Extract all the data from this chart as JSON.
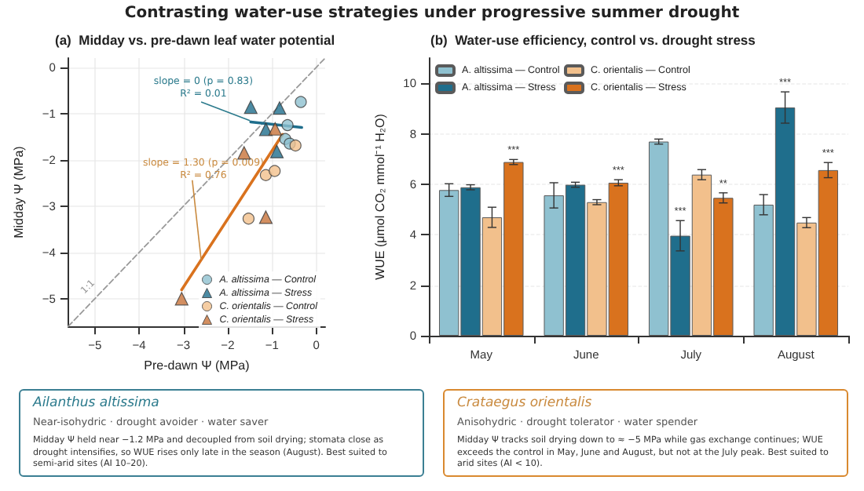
{
  "chart_data": [
    {
      "type": "scatter",
      "title": "(a)  Midday vs. pre-dawn leaf water potential",
      "xlabel": "Pre-dawn Ψ (MPa)",
      "ylabel": "Midday Ψ (MPa)",
      "annotations": [
        "Contrasting water-use strategies under progressive summer drought",
        {
          "text": "slope = 0 (p = 0.83)\nR² = 0.01",
          "x": -1.5,
          "y": -1.15
        },
        {
          "text": "slope = 1.30 (p = 0.009)\nR² = 0.76",
          "x": -2.6,
          "y": -4.16
        },
        "1:1"
      ],
      "xlim": [
        -5.6,
        0.2
      ],
      "ylim": [
        -5.6,
        0.2
      ],
      "xticks": [
        {
          "value": -5,
          "label": "−5"
        },
        {
          "value": -4,
          "label": "−4"
        },
        {
          "value": -3,
          "label": "−3"
        },
        {
          "value": -2,
          "label": "−2"
        },
        {
          "value": -1,
          "label": "−1"
        },
        0
      ],
      "yticks": [
        {
          "value": -5,
          "label": "−5"
        },
        {
          "value": -4,
          "label": "−4"
        },
        {
          "value": -3,
          "label": "−3"
        },
        {
          "value": -2,
          "label": "−2"
        },
        {
          "value": -1,
          "label": "−1"
        },
        0
      ],
      "grid": true,
      "legend": "bottom right",
      "series": [
        {
          "type": "line",
          "color": "#9a9a9a",
          "line_style": "dashed",
          "marker": "none",
          "x": [
            -5.6,
            0.2
          ],
          "values": [
            -5.6,
            0.2
          ]
        },
        {
          "name": "A. altissima — Control",
          "color": "#8fc1d0",
          "marker": "circle",
          "x": [
            -0.35,
            -0.65,
            -0.7,
            -0.6
          ],
          "values": [
            -0.75,
            -1.25,
            -1.55,
            -1.65
          ]
        },
        {
          "name": "A. altissima — Stress",
          "color": "#1f6e8c",
          "marker": "triangle",
          "x": [
            -1.48,
            -0.83,
            -1.14,
            -0.89
          ],
          "values": [
            -0.86,
            -0.88,
            -1.34,
            -1.82
          ]
        },
        {
          "name": "C. orientalis — Control",
          "color": "#f2c08c",
          "marker": "circle",
          "x": [
            -0.47,
            -1.14,
            -0.94,
            -1.53
          ],
          "values": [
            -1.69,
            -2.33,
            -2.24,
            -3.27
          ]
        },
        {
          "name": "C. orientalis — Stress",
          "color": "#c8733a",
          "marker": "triangle",
          "x": [
            -0.93,
            -1.63,
            -1.14,
            -3.04
          ],
          "values": [
            -1.33,
            -1.85,
            -3.24,
            -5.0
          ]
        },
        {
          "type": "line",
          "color": "#1f6e8c",
          "marker": "none",
          "x": [
            -1.48,
            -0.33
          ],
          "values": [
            -1.18,
            -1.3
          ]
        },
        {
          "type": "line",
          "color": "#d9721e",
          "marker": "none",
          "x": [
            -3.04,
            -0.76
          ],
          "values": [
            -4.81,
            -1.45
          ]
        }
      ]
    },
    {
      "type": "bar",
      "title": "(b)  Water-use efficiency, control vs. drought stress",
      "ylabel": "WUE (μmol CO₂ mmol⁻¹ H₂O)",
      "categories": [
        "May",
        "June",
        "July",
        "August"
      ],
      "ylim": [
        0,
        11
      ],
      "yticks": [
        0,
        2,
        4,
        6,
        8,
        10
      ],
      "grid": "y",
      "legend": "top left",
      "series": [
        {
          "name": "A. altissima — Control",
          "color": "#8fc1d0",
          "values": [
            5.77,
            5.56,
            7.69,
            5.19
          ],
          "errors": [
            0.25,
            0.5,
            0.1,
            0.4
          ],
          "value_labels": [
            null,
            null,
            null,
            null
          ]
        },
        {
          "name": "A. altissima — Stress",
          "color": "#1f6e8c",
          "values": [
            5.88,
            5.98,
            3.96,
            9.04
          ],
          "errors": [
            0.1,
            0.1,
            0.6,
            0.62
          ],
          "value_labels": [
            null,
            null,
            "***",
            "***"
          ]
        },
        {
          "name": "C. orientalis — Control",
          "color": "#f2c08c",
          "values": [
            4.69,
            5.29,
            6.38,
            4.48
          ],
          "errors": [
            0.4,
            0.1,
            0.2,
            0.2
          ],
          "value_labels": [
            null,
            null,
            null,
            null
          ]
        },
        {
          "name": "C. orientalis — Stress",
          "color": "#d9721e",
          "values": [
            6.88,
            6.06,
            5.46,
            6.56
          ],
          "errors": [
            0.1,
            0.12,
            0.2,
            0.3
          ],
          "value_labels": [
            "***",
            "***",
            "**",
            "***"
          ]
        }
      ]
    },
    {
      "type": "other",
      "title": "Ailanthus altissima",
      "subtitle": "Near-isohydric · drought avoider · water saver",
      "annotations": [
        "Midday Ψ held near −1.2 MPa and decoupled from soil drying; stomata close as drought intensifies, so WUE rises only late in the season (August). Best suited to semi-arid sites (AI 10–20)."
      ]
    },
    {
      "type": "other",
      "title": "Crataegus orientalis",
      "subtitle": "Anisohydric · drought tolerator · water spender",
      "annotations": [
        "Midday Ψ tracks soil drying down to ≈ −5 MPa while gas exchange continues; WUE exceeds the control in May, June and August, but not at the July peak. Best suited to arid sites (AI < 10)."
      ]
    }
  ]
}
